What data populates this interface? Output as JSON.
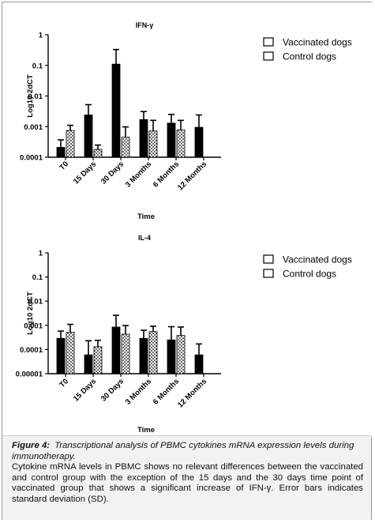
{
  "caption": {
    "label": "Figure 4:",
    "title": "Transcriptional analysis of PBMC cytokines mRNA expression levels during immunotherapy.",
    "body": "Cytokine mRNA levels in PBMC shows no relevant differences between the vaccinated and control group with the exception of the 15 days and the 30 days time point of vaccinated group that shows a significant increase of IFN-γ. Error bars indicates standard deviation (SD)."
  },
  "colors": {
    "vaccinated": "#000000",
    "control_pattern": "dotted-white",
    "axis": "#000000"
  },
  "chart_data": [
    {
      "type": "bar",
      "title": "IFN-γ",
      "xlabel": "Time",
      "ylabel": "Log10 2dCT",
      "yscale": "log",
      "ylim": [
        0.0001,
        1
      ],
      "yticks": [
        "1",
        "0.1",
        "0.01",
        "0.001",
        "0.0001"
      ],
      "categories": [
        "T0",
        "15 Days",
        "30 Days",
        "3 Months",
        "6 Months",
        "12 Months"
      ],
      "legend_position": "top-right",
      "series": [
        {
          "name": "Vaccinated dogs",
          "fill": "solid-black",
          "values": [
            0.00021,
            0.0024,
            0.11,
            0.0017,
            0.0013,
            0.00095
          ],
          "error_upper": [
            0.00037,
            0.0052,
            0.33,
            0.0031,
            0.0025,
            0.0024
          ]
        },
        {
          "name": "Control dogs",
          "fill": "dotted-white",
          "values": [
            0.00075,
            0.00018,
            0.00045,
            0.00072,
            0.00078,
            null
          ],
          "error_upper": [
            0.0011,
            0.00025,
            0.00098,
            0.0016,
            0.0016,
            null
          ]
        }
      ]
    },
    {
      "type": "bar",
      "title": "IL-4",
      "xlabel": "Time",
      "ylabel": "Log10 2dCT",
      "yscale": "log",
      "ylim": [
        1e-05,
        1
      ],
      "yticks": [
        "1",
        "0.1",
        "0.01",
        "0.001",
        "0.0001",
        "0.00001"
      ],
      "categories": [
        "T0",
        "15 Days",
        "30 Days",
        "3 Months",
        "6 Months",
        "12 Months"
      ],
      "legend_position": "top-right",
      "series": [
        {
          "name": "Vaccinated dogs",
          "fill": "solid-black",
          "values": [
            0.00029,
            6e-05,
            0.00085,
            0.00029,
            0.00025,
            6e-05
          ],
          "error_upper": [
            0.00058,
            0.00023,
            0.0026,
            0.00063,
            0.00088,
            0.00017
          ]
        },
        {
          "name": "Control dogs",
          "fill": "dotted-white",
          "values": [
            0.00052,
            0.00013,
            0.00043,
            0.00055,
            0.00038,
            null
          ],
          "error_upper": [
            0.0011,
            0.00024,
            0.00098,
            0.00092,
            0.00085,
            null
          ]
        }
      ]
    }
  ]
}
